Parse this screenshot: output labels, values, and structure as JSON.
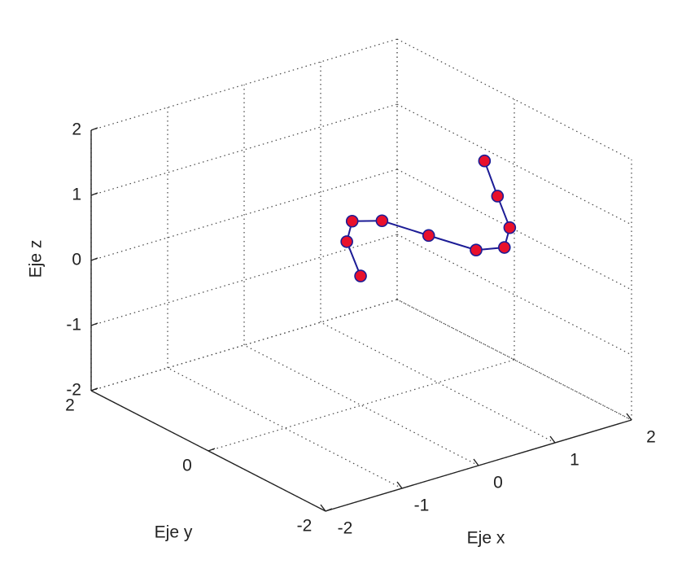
{
  "chart_data": {
    "type": "line3d",
    "xlabel": "Eje x",
    "ylabel": "Eje y",
    "zlabel": "Eje z",
    "xlim": [
      -2,
      2
    ],
    "ylim": [
      -2,
      2
    ],
    "zlim": [
      -2,
      2
    ],
    "xticks": [
      -2,
      -1,
      0,
      1,
      2
    ],
    "yticks": [
      -2,
      0,
      2
    ],
    "zticks": [
      -2,
      -1,
      0,
      1,
      2
    ],
    "grid": true,
    "series": [
      {
        "color": "#1c1c96",
        "marker_color": "#e8102c",
        "x": [
          -0.01,
          -0.19,
          -0.12,
          0.27,
          0.88,
          1.5,
          1.87,
          1.94,
          1.78,
          1.61
        ],
        "y": [
          0,
          0,
          0,
          0,
          0,
          0,
          0,
          0,
          0,
          0
        ],
        "z": [
          -0.01,
          0.58,
          0.87,
          0.74,
          0.3,
          -0.14,
          -0.23,
          0.05,
          0.59,
          1.19
        ]
      }
    ]
  }
}
